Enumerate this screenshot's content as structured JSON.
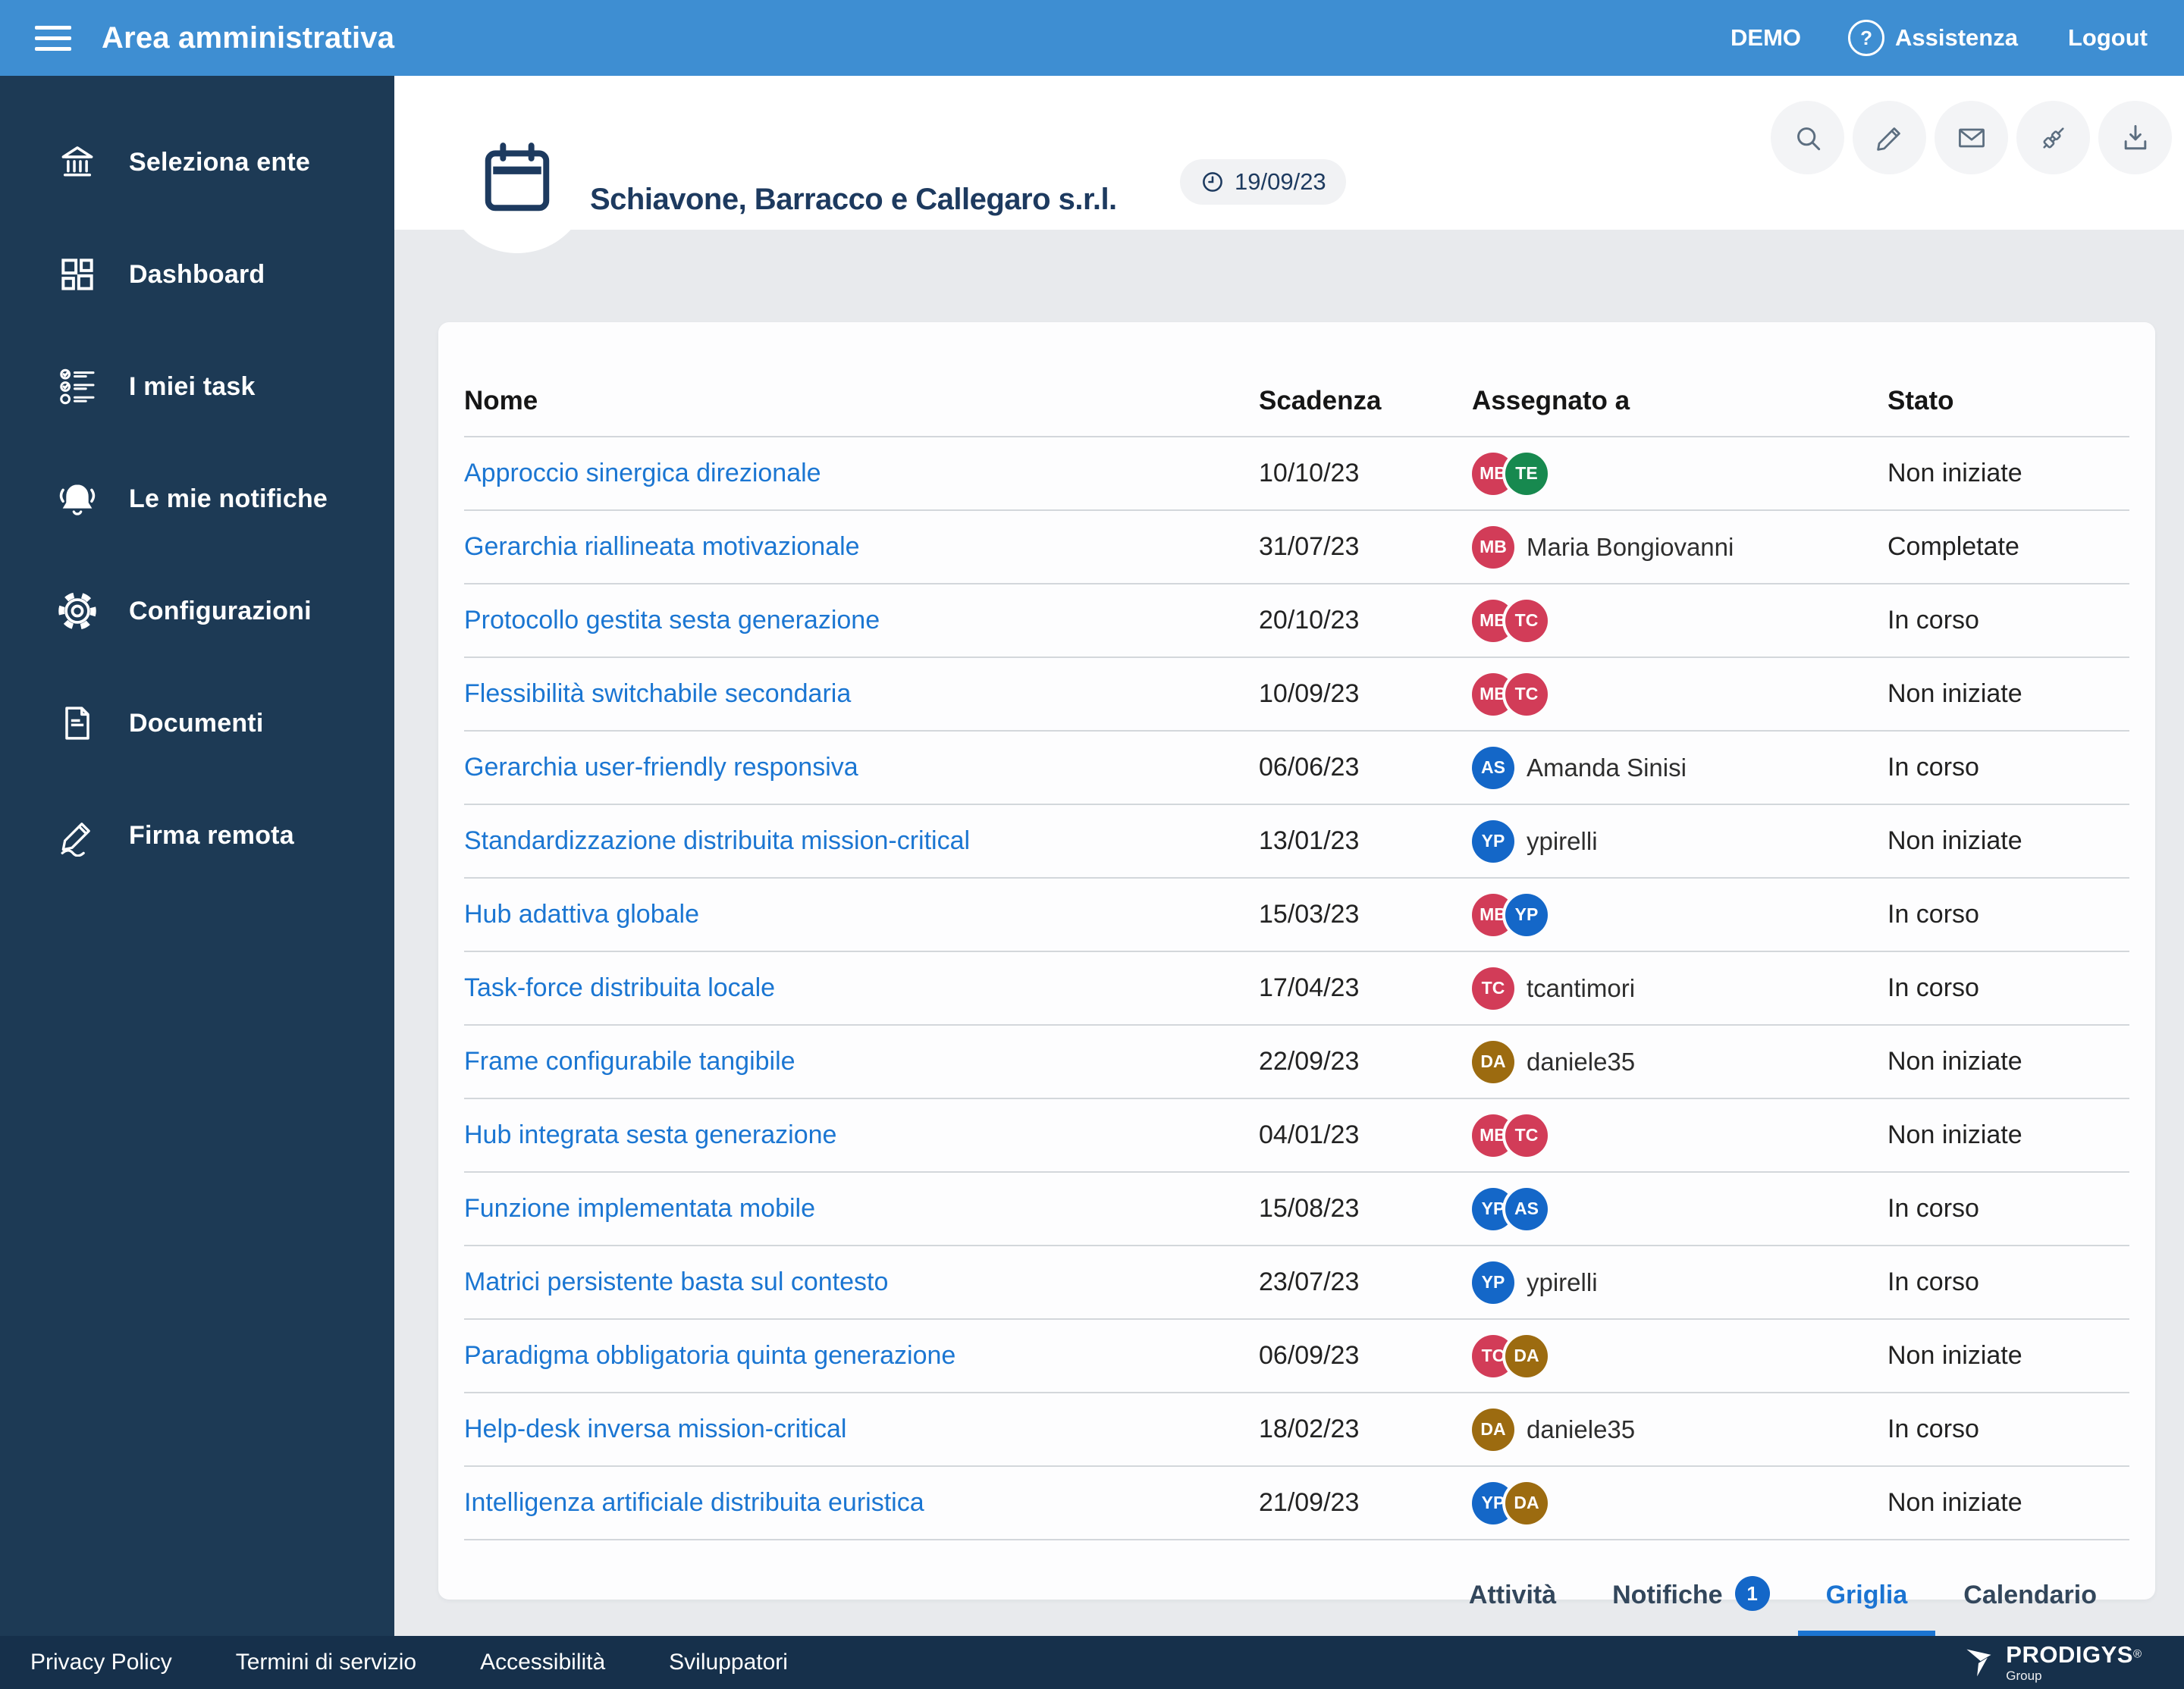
{
  "topbar": {
    "title": "Area amministrativa",
    "demo_label": "DEMO",
    "assistenza_label": "Assistenza",
    "logout_label": "Logout",
    "help_glyph": "?"
  },
  "sidebar": {
    "items": [
      {
        "label": "Seleziona ente",
        "icon": "bank"
      },
      {
        "label": "Dashboard",
        "icon": "dashboard"
      },
      {
        "label": "I miei task",
        "icon": "tasks"
      },
      {
        "label": "Le mie notifiche",
        "icon": "bell"
      },
      {
        "label": "Configurazioni",
        "icon": "gear"
      },
      {
        "label": "Documenti",
        "icon": "document"
      },
      {
        "label": "Firma remota",
        "icon": "pen"
      }
    ]
  },
  "header": {
    "company": "Schiavone, Barracco e Callegaro s.r.l.",
    "date": "19/09/23",
    "actions": [
      {
        "icon": "search"
      },
      {
        "icon": "pencil"
      },
      {
        "icon": "mail"
      },
      {
        "icon": "plug"
      },
      {
        "icon": "download"
      }
    ],
    "tabs": [
      {
        "label": "Attività"
      },
      {
        "label": "Notifiche",
        "badge": "1"
      },
      {
        "label": "Griglia",
        "active": true
      },
      {
        "label": "Calendario"
      }
    ]
  },
  "table": {
    "columns": [
      "Nome",
      "Scadenza",
      "Assegnato a",
      "Stato"
    ],
    "rows": [
      {
        "name": "Approccio sinergica direzionale",
        "due": "10/10/23",
        "assignees": [
          {
            "initials": "MB",
            "color": "#d23c58"
          },
          {
            "initials": "TE",
            "color": "#17894f"
          }
        ],
        "assignee_label": "",
        "status": "Non iniziate"
      },
      {
        "name": "Gerarchia riallineata motivazionale",
        "due": "31/07/23",
        "assignees": [
          {
            "initials": "MB",
            "color": "#d23c58"
          }
        ],
        "assignee_label": "Maria Bongiovanni",
        "status": "Completate"
      },
      {
        "name": "Protocollo gestita sesta generazione",
        "due": "20/10/23",
        "assignees": [
          {
            "initials": "MB",
            "color": "#d23c58"
          },
          {
            "initials": "TC",
            "color": "#d23c58"
          }
        ],
        "assignee_label": "",
        "status": "In corso"
      },
      {
        "name": "Flessibilità switchabile secondaria",
        "due": "10/09/23",
        "assignees": [
          {
            "initials": "MB",
            "color": "#d23c58"
          },
          {
            "initials": "TC",
            "color": "#d23c58"
          }
        ],
        "assignee_label": "",
        "status": "Non iniziate"
      },
      {
        "name": "Gerarchia user-friendly responsiva",
        "due": "06/06/23",
        "assignees": [
          {
            "initials": "AS",
            "color": "#1467c8"
          }
        ],
        "assignee_label": "Amanda Sinisi",
        "status": "In corso"
      },
      {
        "name": "Standardizzazione distribuita mission-critical",
        "due": "13/01/23",
        "assignees": [
          {
            "initials": "YP",
            "color": "#1467c8"
          }
        ],
        "assignee_label": "ypirelli",
        "status": "Non iniziate"
      },
      {
        "name": "Hub adattiva globale",
        "due": "15/03/23",
        "assignees": [
          {
            "initials": "MB",
            "color": "#d23c58"
          },
          {
            "initials": "YP",
            "color": "#1467c8"
          }
        ],
        "assignee_label": "",
        "status": "In corso"
      },
      {
        "name": "Task-force distribuita locale",
        "due": "17/04/23",
        "assignees": [
          {
            "initials": "TC",
            "color": "#d23c58"
          }
        ],
        "assignee_label": "tcantimori",
        "status": "In corso"
      },
      {
        "name": "Frame configurabile tangibile",
        "due": "22/09/23",
        "assignees": [
          {
            "initials": "DA",
            "color": "#9c6b10"
          }
        ],
        "assignee_label": "daniele35",
        "status": "Non iniziate"
      },
      {
        "name": "Hub integrata sesta generazione",
        "due": "04/01/23",
        "assignees": [
          {
            "initials": "MB",
            "color": "#d23c58"
          },
          {
            "initials": "TC",
            "color": "#d23c58"
          }
        ],
        "assignee_label": "",
        "status": "Non iniziate"
      },
      {
        "name": "Funzione implementata mobile",
        "due": "15/08/23",
        "assignees": [
          {
            "initials": "YP",
            "color": "#1467c8"
          },
          {
            "initials": "AS",
            "color": "#1467c8"
          }
        ],
        "assignee_label": "",
        "status": "In corso"
      },
      {
        "name": "Matrici persistente basta sul contesto",
        "due": "23/07/23",
        "assignees": [
          {
            "initials": "YP",
            "color": "#1467c8"
          }
        ],
        "assignee_label": "ypirelli",
        "status": "In corso"
      },
      {
        "name": "Paradigma obbligatoria quinta generazione",
        "due": "06/09/23",
        "assignees": [
          {
            "initials": "TC",
            "color": "#d23c58"
          },
          {
            "initials": "DA",
            "color": "#9c6b10"
          }
        ],
        "assignee_label": "",
        "status": "Non iniziate"
      },
      {
        "name": "Help-desk inversa mission-critical",
        "due": "18/02/23",
        "assignees": [
          {
            "initials": "DA",
            "color": "#9c6b10"
          }
        ],
        "assignee_label": "daniele35",
        "status": "In corso"
      },
      {
        "name": "Intelligenza artificiale distribuita euristica",
        "due": "21/09/23",
        "assignees": [
          {
            "initials": "YP",
            "color": "#1467c8"
          },
          {
            "initials": "DA",
            "color": "#9c6b10"
          }
        ],
        "assignee_label": "",
        "status": "Non iniziate"
      }
    ]
  },
  "footer": {
    "links": [
      "Privacy Policy",
      "Termini di servizio",
      "Accessibilità",
      "Sviluppatori"
    ],
    "brand": "PRODIGYS",
    "brand_reg": "®",
    "brand_sub": "Group"
  },
  "colors": {
    "topbar_blue": "#3e8ed2",
    "sidebar_navy": "#1d3a55",
    "footer_navy": "#16304b",
    "link_blue": "#1b76d2",
    "badge_blue": "#1467c8",
    "avatar_red": "#d23c58",
    "avatar_green": "#17894f",
    "avatar_blue": "#1467c8",
    "avatar_gold": "#9c6b10"
  }
}
